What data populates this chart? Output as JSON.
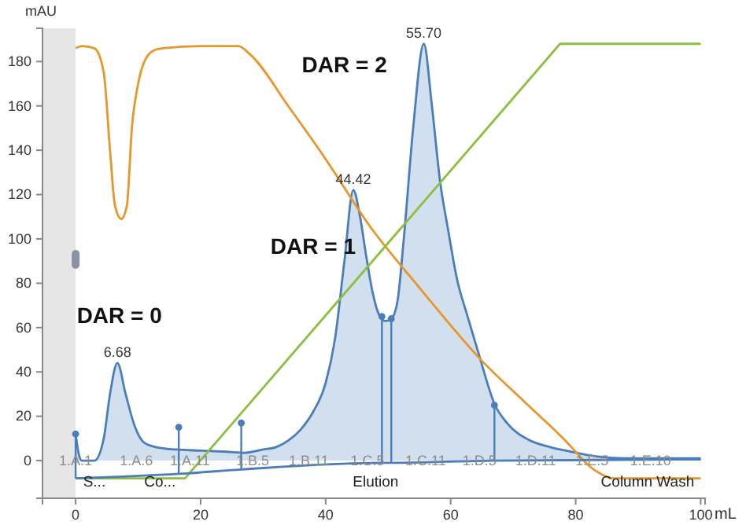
{
  "chart_data": {
    "type": "area",
    "xlabel": "mL",
    "ylabel": "mAU",
    "xlim": [
      -5.3,
      100.7
    ],
    "ylim": [
      -17,
      195
    ],
    "xticks": [
      0,
      20,
      40,
      60,
      80,
      100
    ],
    "yticks": [
      0,
      20,
      40,
      60,
      80,
      100,
      120,
      140,
      160,
      180
    ],
    "series": [
      {
        "color": "#4a7ebb",
        "x": [
          0,
          0.5,
          1,
          3,
          4.5,
          5.5,
          6.68,
          8,
          9.4,
          11,
          13,
          16,
          20,
          24,
          27,
          30,
          32,
          34,
          36,
          38,
          40,
          41.5,
          43,
          44.42,
          45.5,
          46.5,
          47.5,
          48.5,
          49.5,
          50.5,
          51.5,
          52.5,
          54,
          55.7,
          57,
          58.3,
          59.6,
          61,
          62.6,
          64.5,
          67.1,
          69,
          72.4,
          76,
          79.3,
          83,
          88,
          95,
          100
        ],
        "values": [
          12,
          3,
          0,
          0,
          10,
          30,
          44,
          30,
          16,
          8,
          6,
          5,
          4.5,
          4,
          3.5,
          5,
          6,
          9,
          14,
          22,
          35,
          55,
          90,
          122,
          110,
          92,
          76,
          66,
          63,
          64,
          72,
          100,
          150,
          188,
          160,
          126,
          104,
          82,
          66,
          48,
          25,
          17,
          9.5,
          6,
          4,
          2,
          1,
          1,
          1
        ]
      },
      {
        "type": "line",
        "color": "#e8962a",
        "x": [
          0,
          1,
          3,
          4.5,
          5.5,
          6.3,
          7.3,
          8.2,
          9,
          10,
          11,
          12.5,
          14,
          20,
          26,
          28,
          34,
          40,
          47,
          55,
          65,
          72,
          78,
          80,
          82,
          84,
          86,
          90,
          100
        ],
        "values": [
          186,
          187,
          186,
          175,
          140,
          115,
          109,
          115,
          150,
          170,
          180,
          185,
          186,
          187,
          187,
          183,
          160,
          136,
          106,
          78,
          45,
          26,
          10,
          4,
          -2,
          -6,
          -8,
          -8,
          -8
        ]
      },
      {
        "type": "line",
        "color": "#8cbf3f",
        "x": [
          0,
          17.5,
          77.5,
          100
        ],
        "values": [
          -8,
          -8,
          188,
          188
        ]
      },
      {
        "type": "line",
        "color": "#4a7ebb",
        "x": [
          0,
          16.5,
          26.5,
          49,
          50.5,
          67,
          100
        ],
        "values": [
          -8,
          -6,
          -4,
          -1,
          -1,
          0,
          0.5
        ]
      },
      {
        "type": "scatter",
        "color": "#4a7ebb",
        "x": [
          0,
          16.5,
          26.5,
          49,
          50.5,
          67
        ],
        "values": [
          12,
          15,
          17,
          65,
          64,
          25
        ],
        "errors": [
          [
            -8,
            12
          ],
          [
            -6,
            15
          ],
          [
            -4,
            17
          ],
          [
            -1,
            65
          ],
          [
            -1,
            64
          ],
          [
            0,
            25
          ]
        ]
      }
    ],
    "bands": [
      {
        "axis": "x",
        "from": -5.3,
        "to": 0,
        "color": "#e6e6e6"
      }
    ],
    "annotations": [
      {
        "text": "6.68",
        "x": 6.68,
        "y": 44
      },
      {
        "text": "44.42",
        "x": 44.42,
        "y": 122
      },
      {
        "text": "55.70",
        "x": 55.7,
        "y": 188
      },
      "DAR = 0",
      "DAR = 1",
      "DAR = 2",
      {
        "text": "1.A.1",
        "x": 0,
        "y": 0
      },
      {
        "text": "1.A.6",
        "x": 9.7,
        "y": 0
      },
      {
        "text": "1.A.11",
        "x": 18.3,
        "y": 0
      },
      {
        "text": "1.B.5",
        "x": 28.3,
        "y": 0
      },
      {
        "text": "1.B.11",
        "x": 37.3,
        "y": 0
      },
      {
        "text": "1.C.5",
        "x": 46.7,
        "y": 0
      },
      {
        "text": "1.C.11",
        "x": 56,
        "y": 0
      },
      {
        "text": "1.D.5",
        "x": 64.6,
        "y": 0
      },
      {
        "text": "1.D.11",
        "x": 73.6,
        "y": 0
      },
      {
        "text": "1.E.5",
        "x": 82.6,
        "y": 0
      },
      {
        "text": "1.E.10",
        "x": 92,
        "y": 0
      },
      "S...",
      "Co...",
      "Elution",
      "Column Wash"
    ]
  }
}
